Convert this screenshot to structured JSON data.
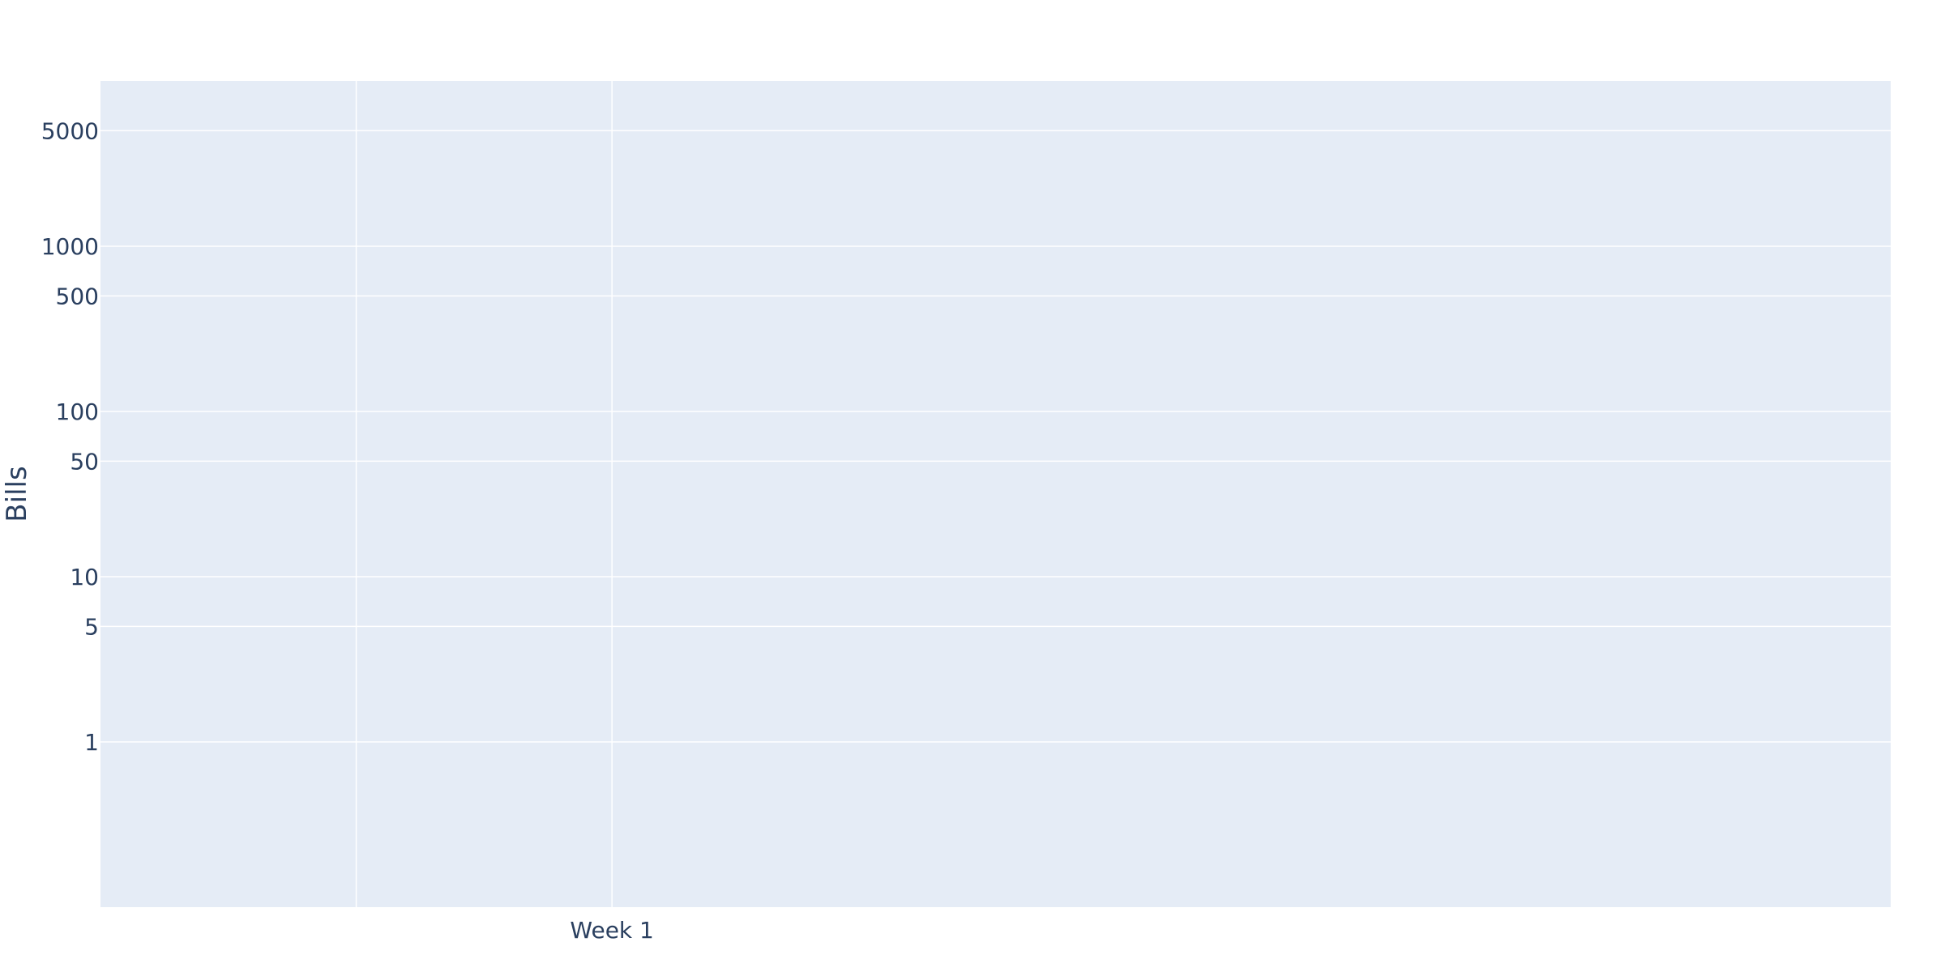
{
  "chart_data": {
    "type": "bar",
    "title": "",
    "xlabel": "",
    "ylabel": "Bills",
    "y_scale": "log",
    "ylim": [
      0.1,
      10000
    ],
    "categories": [
      "Week 1"
    ],
    "series": [],
    "y_ticks": [
      1,
      5,
      10,
      50,
      100,
      500,
      1000,
      5000
    ],
    "y_tick_labels": [
      "1",
      "5",
      "10",
      "50",
      "100",
      "500",
      "1000",
      "5000"
    ],
    "x_tick_labels": [
      "Week 1"
    ],
    "grid": true,
    "legend": "none",
    "colors": {
      "plot_background": "#e5ecf6",
      "grid": "#ffffff",
      "text": "#2a3f5f"
    }
  }
}
